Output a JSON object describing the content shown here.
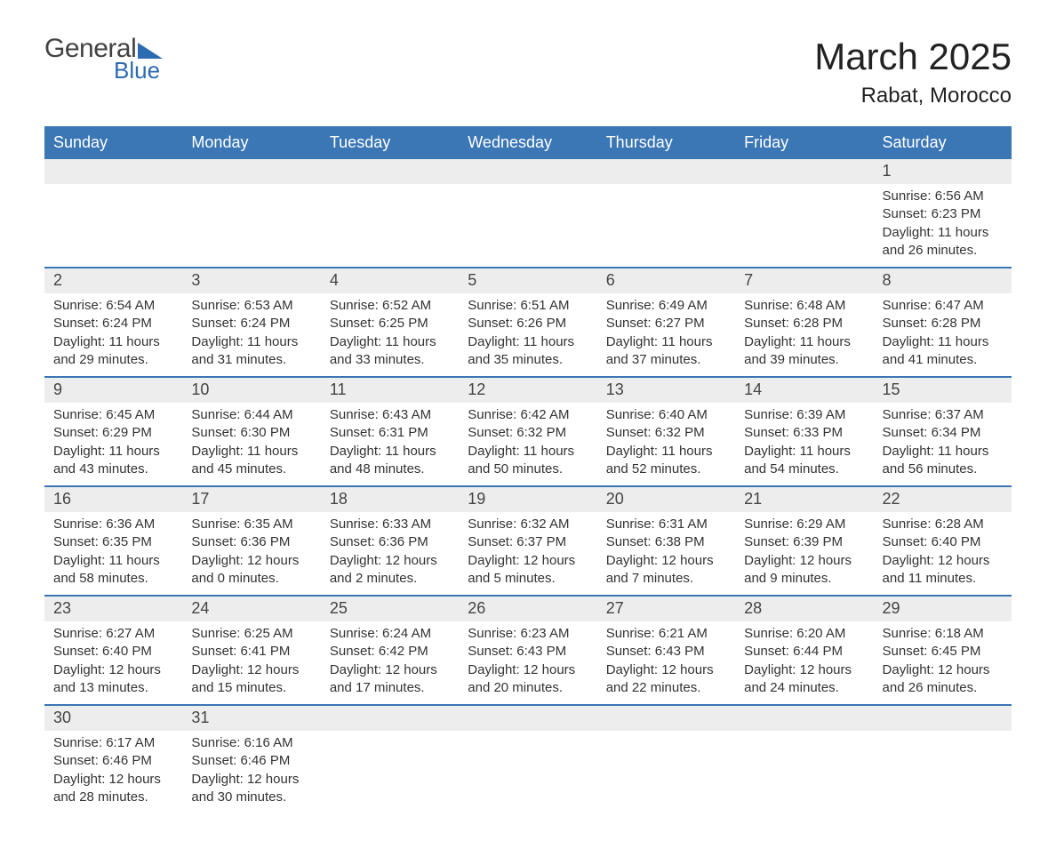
{
  "logo": {
    "text1": "General",
    "text2": "Blue"
  },
  "title": "March 2025",
  "location": "Rabat, Morocco",
  "colors": {
    "header_bg": "#3b76b5",
    "header_text": "#ffffff",
    "row_divider": "#3b76b5",
    "daynum_bg": "#ededed",
    "body_text": "#333333",
    "logo_blue": "#2b6bb0"
  },
  "columns": [
    "Sunday",
    "Monday",
    "Tuesday",
    "Wednesday",
    "Thursday",
    "Friday",
    "Saturday"
  ],
  "weeks": [
    [
      null,
      null,
      null,
      null,
      null,
      null,
      {
        "n": "1",
        "sunrise": "6:56 AM",
        "sunset": "6:23 PM",
        "dl_h": "11",
        "dl_m": "26"
      }
    ],
    [
      {
        "n": "2",
        "sunrise": "6:54 AM",
        "sunset": "6:24 PM",
        "dl_h": "11",
        "dl_m": "29"
      },
      {
        "n": "3",
        "sunrise": "6:53 AM",
        "sunset": "6:24 PM",
        "dl_h": "11",
        "dl_m": "31"
      },
      {
        "n": "4",
        "sunrise": "6:52 AM",
        "sunset": "6:25 PM",
        "dl_h": "11",
        "dl_m": "33"
      },
      {
        "n": "5",
        "sunrise": "6:51 AM",
        "sunset": "6:26 PM",
        "dl_h": "11",
        "dl_m": "35"
      },
      {
        "n": "6",
        "sunrise": "6:49 AM",
        "sunset": "6:27 PM",
        "dl_h": "11",
        "dl_m": "37"
      },
      {
        "n": "7",
        "sunrise": "6:48 AM",
        "sunset": "6:28 PM",
        "dl_h": "11",
        "dl_m": "39"
      },
      {
        "n": "8",
        "sunrise": "6:47 AM",
        "sunset": "6:28 PM",
        "dl_h": "11",
        "dl_m": "41"
      }
    ],
    [
      {
        "n": "9",
        "sunrise": "6:45 AM",
        "sunset": "6:29 PM",
        "dl_h": "11",
        "dl_m": "43"
      },
      {
        "n": "10",
        "sunrise": "6:44 AM",
        "sunset": "6:30 PM",
        "dl_h": "11",
        "dl_m": "45"
      },
      {
        "n": "11",
        "sunrise": "6:43 AM",
        "sunset": "6:31 PM",
        "dl_h": "11",
        "dl_m": "48"
      },
      {
        "n": "12",
        "sunrise": "6:42 AM",
        "sunset": "6:32 PM",
        "dl_h": "11",
        "dl_m": "50"
      },
      {
        "n": "13",
        "sunrise": "6:40 AM",
        "sunset": "6:32 PM",
        "dl_h": "11",
        "dl_m": "52"
      },
      {
        "n": "14",
        "sunrise": "6:39 AM",
        "sunset": "6:33 PM",
        "dl_h": "11",
        "dl_m": "54"
      },
      {
        "n": "15",
        "sunrise": "6:37 AM",
        "sunset": "6:34 PM",
        "dl_h": "11",
        "dl_m": "56"
      }
    ],
    [
      {
        "n": "16",
        "sunrise": "6:36 AM",
        "sunset": "6:35 PM",
        "dl_h": "11",
        "dl_m": "58"
      },
      {
        "n": "17",
        "sunrise": "6:35 AM",
        "sunset": "6:36 PM",
        "dl_h": "12",
        "dl_m": "0"
      },
      {
        "n": "18",
        "sunrise": "6:33 AM",
        "sunset": "6:36 PM",
        "dl_h": "12",
        "dl_m": "2"
      },
      {
        "n": "19",
        "sunrise": "6:32 AM",
        "sunset": "6:37 PM",
        "dl_h": "12",
        "dl_m": "5"
      },
      {
        "n": "20",
        "sunrise": "6:31 AM",
        "sunset": "6:38 PM",
        "dl_h": "12",
        "dl_m": "7"
      },
      {
        "n": "21",
        "sunrise": "6:29 AM",
        "sunset": "6:39 PM",
        "dl_h": "12",
        "dl_m": "9"
      },
      {
        "n": "22",
        "sunrise": "6:28 AM",
        "sunset": "6:40 PM",
        "dl_h": "12",
        "dl_m": "11"
      }
    ],
    [
      {
        "n": "23",
        "sunrise": "6:27 AM",
        "sunset": "6:40 PM",
        "dl_h": "12",
        "dl_m": "13"
      },
      {
        "n": "24",
        "sunrise": "6:25 AM",
        "sunset": "6:41 PM",
        "dl_h": "12",
        "dl_m": "15"
      },
      {
        "n": "25",
        "sunrise": "6:24 AM",
        "sunset": "6:42 PM",
        "dl_h": "12",
        "dl_m": "17"
      },
      {
        "n": "26",
        "sunrise": "6:23 AM",
        "sunset": "6:43 PM",
        "dl_h": "12",
        "dl_m": "20"
      },
      {
        "n": "27",
        "sunrise": "6:21 AM",
        "sunset": "6:43 PM",
        "dl_h": "12",
        "dl_m": "22"
      },
      {
        "n": "28",
        "sunrise": "6:20 AM",
        "sunset": "6:44 PM",
        "dl_h": "12",
        "dl_m": "24"
      },
      {
        "n": "29",
        "sunrise": "6:18 AM",
        "sunset": "6:45 PM",
        "dl_h": "12",
        "dl_m": "26"
      }
    ],
    [
      {
        "n": "30",
        "sunrise": "6:17 AM",
        "sunset": "6:46 PM",
        "dl_h": "12",
        "dl_m": "28"
      },
      {
        "n": "31",
        "sunrise": "6:16 AM",
        "sunset": "6:46 PM",
        "dl_h": "12",
        "dl_m": "30"
      },
      null,
      null,
      null,
      null,
      null
    ]
  ],
  "labels": {
    "sunrise": "Sunrise: ",
    "sunset": "Sunset: ",
    "daylight_pre": "Daylight: ",
    "daylight_mid1": " hours",
    "daylight_mid2": "and ",
    "daylight_post": " minutes."
  }
}
